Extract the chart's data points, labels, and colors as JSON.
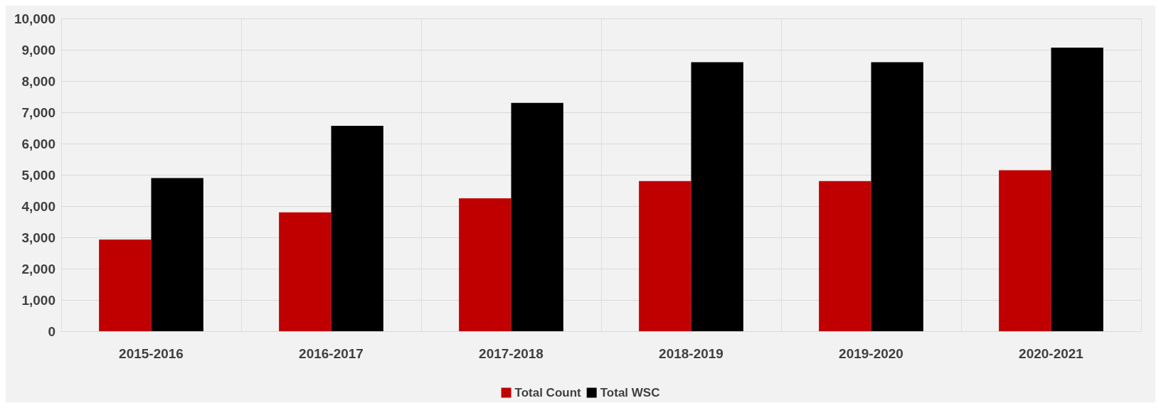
{
  "chart_data": {
    "type": "bar",
    "categories": [
      "2015-2016",
      "2016-2017",
      "2017-2018",
      "2018-2019",
      "2019-2020",
      "2020-2021"
    ],
    "series": [
      {
        "name": "Total Count",
        "color": "#c00000",
        "values": [
          2930,
          3800,
          4250,
          4800,
          4800,
          5150
        ]
      },
      {
        "name": "Total WSC",
        "color": "#000000",
        "values": [
          4900,
          6570,
          7300,
          8600,
          8600,
          9070
        ]
      }
    ],
    "ylim": [
      0,
      10000
    ],
    "yticks": [
      {
        "value": 0,
        "label": "0"
      },
      {
        "value": 1000,
        "label": "1,000"
      },
      {
        "value": 2000,
        "label": "2,000"
      },
      {
        "value": 3000,
        "label": "3,000"
      },
      {
        "value": 4000,
        "label": "4,000"
      },
      {
        "value": 5000,
        "label": "5,000"
      },
      {
        "value": 6000,
        "label": "6,000"
      },
      {
        "value": 7000,
        "label": "7,000"
      },
      {
        "value": 8000,
        "label": "8,000"
      },
      {
        "value": 9000,
        "label": "9,000"
      },
      {
        "value": 10000,
        "label": "10,000"
      }
    ],
    "grid": true,
    "legend": "bottom"
  }
}
